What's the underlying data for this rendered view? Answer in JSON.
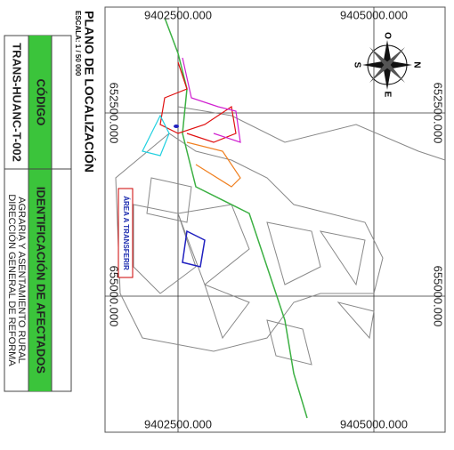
{
  "title": "PLANO DE LOCALIZACIÓN",
  "scale": "ESCALA: 1 / 50 000",
  "table": {
    "code_header": "CÓDIGO",
    "code": "TRANS-HUANC-T-002",
    "affected_header": "IDENTIFICACIÓN DE AFECTADOS",
    "affected": [
      "DIRECCIÓN GENERAL DE REFORMA",
      "AGRARIA Y ASENTAMIENTO RURAL"
    ]
  },
  "grid": {
    "top": [
      "9402500.000",
      "9405000.000"
    ],
    "bottom": [
      "9402500.000",
      "9405000.000"
    ],
    "left": [
      "652500.000",
      "655000.000"
    ],
    "right": [
      "652500.000",
      "655000.000"
    ]
  },
  "compass": {
    "n": "N",
    "s": "S",
    "e": "E",
    "o": "O"
  },
  "annotation": "ÁREA A TRANSFERIR"
}
